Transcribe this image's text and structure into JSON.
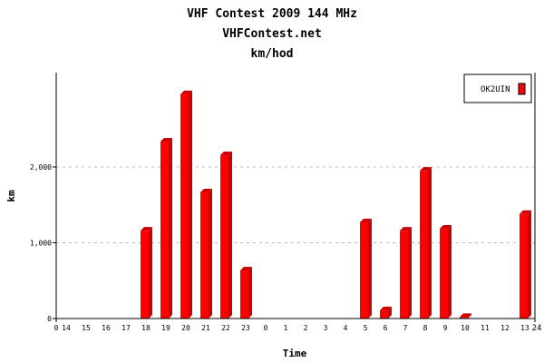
{
  "chart_data": {
    "type": "bar",
    "title": "VHF Contest 2009 144 MHz",
    "subtitle": "VHFContest.net",
    "subtitle2": "km/hod",
    "xlabel": "Time",
    "ylabel": "km",
    "categories": [
      "14",
      "15",
      "16",
      "17",
      "18",
      "19",
      "20",
      "21",
      "22",
      "23",
      "0",
      "1",
      "2",
      "3",
      "4",
      "5",
      "6",
      "7",
      "8",
      "9",
      "10",
      "11",
      "12",
      "13"
    ],
    "x_end_labels": [
      "0",
      "24"
    ],
    "series": [
      {
        "name": "OK2UIN",
        "color": "#ff0000",
        "values": [
          0,
          0,
          0,
          0,
          1160,
          2335,
          2960,
          1665,
          2155,
          635,
          0,
          0,
          0,
          0,
          0,
          1270,
          110,
          1160,
          1950,
          1185,
          20,
          0,
          0,
          1380
        ]
      }
    ],
    "yticks": [
      0,
      1000,
      2000
    ],
    "ytick_labels": [
      "0",
      "1,000",
      "2,000"
    ],
    "ylim": [
      0,
      3200
    ],
    "grid": true,
    "legend": "top-right"
  }
}
